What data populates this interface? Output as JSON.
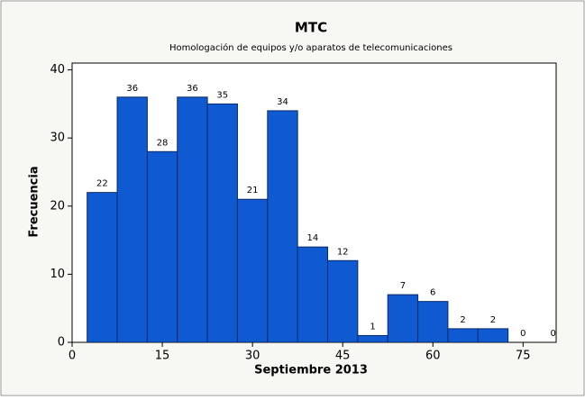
{
  "chart_data": {
    "type": "histogram",
    "title": "MTC",
    "subtitle": "Homologación de equipos y/o aparatos de telecomunicaciones",
    "x_label": "Septiembre 2013",
    "y_label": "Frecuencia",
    "bins": [
      2.5,
      7.5,
      12.5,
      17.5,
      22.5,
      27.5,
      32.5,
      37.5,
      42.5,
      47.5,
      52.5,
      57.5,
      62.5,
      67.5,
      72.5,
      77.5,
      82.5
    ],
    "counts": [
      22,
      36,
      28,
      36,
      35,
      21,
      34,
      14,
      12,
      1,
      7,
      6,
      2,
      2,
      0,
      0
    ],
    "color": "#0f5ad0",
    "xlim": [
      0,
      80.5
    ],
    "xticks": [
      0,
      15,
      30,
      45,
      60,
      75
    ],
    "ylim": [
      0,
      41
    ],
    "yticks": [
      0,
      10,
      20,
      30,
      40
    ]
  }
}
